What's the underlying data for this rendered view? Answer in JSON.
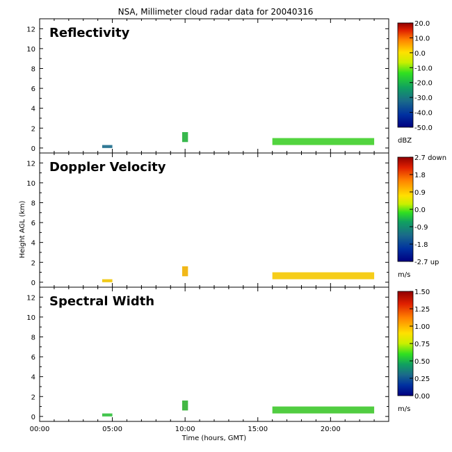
{
  "title": "NSA, Millimeter cloud radar data for 20040316",
  "chart_data": {
    "type": "heatmap",
    "xlabel": "Time (hours, GMT)",
    "ylabel": "Height AGL (km)",
    "x_ticks": [
      "00:00",
      "05:00",
      "10:00",
      "15:00",
      "20:00"
    ],
    "x_tick_hours": [
      0,
      5,
      10,
      15,
      20
    ],
    "xlim_hours": [
      0,
      24
    ],
    "ylim": [
      -0.5,
      13
    ],
    "y_ticks": [
      "0",
      "2",
      "4",
      "6",
      "8",
      "10",
      "12"
    ],
    "y_tick_values": [
      0,
      2,
      4,
      6,
      8,
      10,
      12
    ],
    "panels": [
      {
        "name": "Reflectivity",
        "colorbar": {
          "labels": [
            "20.0",
            "10.0",
            "0.0",
            "-10.0",
            "-20.0",
            "-30.0",
            "-40.0",
            "-50.0"
          ],
          "unit": "dBZ"
        },
        "echoes": [
          {
            "t_start": 4.3,
            "t_end": 5.0,
            "h_bottom": 0.0,
            "h_top": 0.3,
            "color": "#1a6a8a"
          },
          {
            "t_start": 9.8,
            "t_end": 10.2,
            "h_bottom": 0.6,
            "h_top": 1.6,
            "color": "#22b03a"
          },
          {
            "t_start": 16.0,
            "t_end": 23.0,
            "h_bottom": 0.3,
            "h_top": 1.0,
            "color": "#3fcf2a"
          }
        ]
      },
      {
        "name": "Doppler Velocity",
        "colorbar": {
          "labels": [
            "2.7 down",
            "1.8",
            "0.9",
            "0.0",
            "-0.9",
            "-1.8",
            "-2.7 up"
          ],
          "unit": "m/s"
        },
        "echoes": [
          {
            "t_start": 4.3,
            "t_end": 5.0,
            "h_bottom": 0.0,
            "h_top": 0.3,
            "color": "#f0c400"
          },
          {
            "t_start": 9.8,
            "t_end": 10.2,
            "h_bottom": 0.6,
            "h_top": 1.6,
            "color": "#f0b000"
          },
          {
            "t_start": 16.0,
            "t_end": 23.0,
            "h_bottom": 0.3,
            "h_top": 1.0,
            "color": "#f5c800"
          }
        ]
      },
      {
        "name": "Spectral Width",
        "colorbar": {
          "labels": [
            "1.50",
            "1.25",
            "1.00",
            "0.75",
            "0.50",
            "0.25",
            "0.00"
          ],
          "unit": "m/s"
        },
        "echoes": [
          {
            "t_start": 4.3,
            "t_end": 5.0,
            "h_bottom": 0.0,
            "h_top": 0.3,
            "color": "#2fc03a"
          },
          {
            "t_start": 9.8,
            "t_end": 10.2,
            "h_bottom": 0.6,
            "h_top": 1.6,
            "color": "#2fb030"
          },
          {
            "t_start": 16.0,
            "t_end": 23.0,
            "h_bottom": 0.3,
            "h_top": 1.0,
            "color": "#3ec82c"
          }
        ]
      }
    ]
  }
}
